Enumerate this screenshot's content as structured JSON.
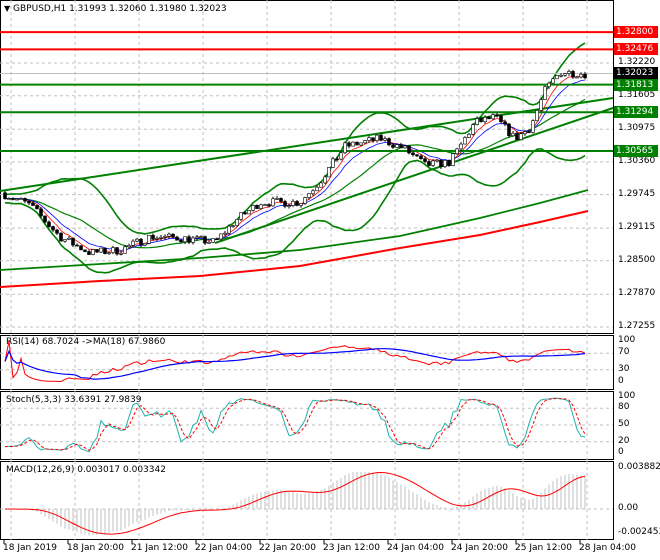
{
  "header": {
    "symbol": "GBPUSD,H1",
    "open": "1.31993",
    "high": "1.32060",
    "low": "1.31980",
    "close": "1.32023",
    "menu_icon": "triangle-down-icon"
  },
  "price_axis": [
    "1.32220",
    "1.31605",
    "1.30975",
    "1.30360",
    "1.29745",
    "1.29115",
    "1.28500",
    "1.27870",
    "1.27255"
  ],
  "levels": [
    {
      "value": "1.32800",
      "color": "#ff0000"
    },
    {
      "value": "1.32476",
      "color": "#ff0000"
    },
    {
      "value": "1.31813",
      "color": "#008000"
    },
    {
      "value": "1.31294",
      "color": "#008000"
    },
    {
      "value": "1.30565",
      "color": "#008000"
    }
  ],
  "current_price": {
    "value": "1.32023",
    "color": "#000000"
  },
  "rsi": {
    "label": "RSI(14) 68.7024  ->MA(18) 67.9860",
    "axis": [
      "100",
      "70",
      "30",
      "0"
    ]
  },
  "stoch": {
    "label": "Stoch(5,3,3) 33.6391 27.9839",
    "axis": [
      "100",
      "80",
      "50",
      "20",
      "0"
    ]
  },
  "macd": {
    "label": "MACD(12,26,9) 0.003017 0.003342",
    "axis": [
      "0.003882",
      "0.00",
      "-0.002453"
    ]
  },
  "time_axis": [
    "18 Jan 2019",
    "18 Jan 20:00",
    "21 Jan 12:00",
    "22 Jan 04:00",
    "22 Jan 20:00",
    "23 Jan 12:00",
    "24 Jan 04:00",
    "24 Jan 20:00",
    "25 Jan 12:00",
    "28 Jan 04:00"
  ],
  "chart_data": {
    "type": "candlestick",
    "timeframe": "H1",
    "approx_close_path": [
      [
        "18 Jan 2019",
        1.2975
      ],
      [
        "18 Jan",
        1.2955
      ],
      [
        "18 Jan 20:00",
        1.2895
      ],
      [
        "21 Jan",
        1.2865
      ],
      [
        "21 Jan 12:00",
        1.287
      ],
      [
        "21 Jan",
        1.2895
      ],
      [
        "22 Jan",
        1.2893
      ],
      [
        "22 Jan 04:00",
        1.2885
      ],
      [
        "22 Jan",
        1.2925
      ],
      [
        "22 Jan 20:00",
        1.296
      ],
      [
        "23 Jan",
        1.296
      ],
      [
        "23 Jan 12:00",
        1.3
      ],
      [
        "23 Jan",
        1.3065
      ],
      [
        "24 Jan 04:00",
        1.308
      ],
      [
        "24 Jan",
        1.306
      ],
      [
        "24 Jan",
        1.303
      ],
      [
        "24 Jan 20:00",
        1.3035
      ],
      [
        "25 Jan",
        1.311
      ],
      [
        "25 Jan",
        1.312
      ],
      [
        "25 Jan 12:00",
        1.308
      ],
      [
        "25 Jan",
        1.31
      ],
      [
        "28 Jan",
        1.317
      ],
      [
        "28 Jan",
        1.3205
      ],
      [
        "28 Jan 04:00",
        1.3202
      ]
    ],
    "colors": {
      "bull": "#000000",
      "bear": "#000000",
      "bands": "#008000",
      "ma_fast": "#0000ff",
      "ma_slow": "#ff0000",
      "rsi": "#ff0000",
      "rsi_ma": "#0000ff",
      "stoch_main": "#20b2aa",
      "stoch_signal": "#ff0000",
      "macd_hist": "#c0c0c0",
      "macd_signal": "#ff0000"
    }
  }
}
